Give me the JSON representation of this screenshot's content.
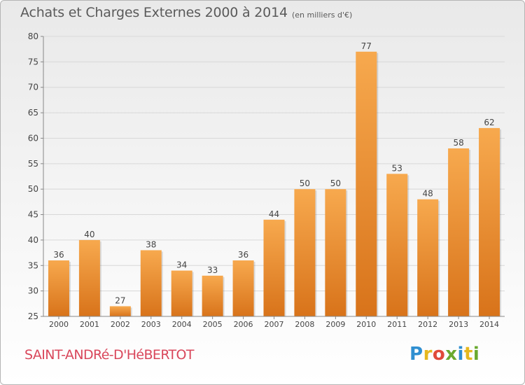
{
  "header": {
    "title": "Achats et Charges Externes 2000 à 2014",
    "subtitle": "(en milliers d'€)"
  },
  "footer": {
    "commune": "SAINT-ANDRé-D'HéBERTOT",
    "logo": [
      "P",
      "r",
      "o",
      "x",
      "i",
      "t",
      "i"
    ]
  },
  "colors": {
    "bar_light": "#f7a94e",
    "bar_dark": "#d8731a",
    "grid": "#d8d8d8",
    "axis_text": "#444444",
    "commune": "#d9475b"
  },
  "chart_data": {
    "type": "bar",
    "title": "Achats et Charges Externes 2000 à 2014",
    "subtitle": "(en milliers d'€)",
    "categories": [
      "2000",
      "2001",
      "2002",
      "2003",
      "2004",
      "2005",
      "2006",
      "2007",
      "2008",
      "2009",
      "2010",
      "2011",
      "2012",
      "2013",
      "2014"
    ],
    "values": [
      36,
      40,
      27,
      38,
      34,
      33,
      36,
      44,
      50,
      50,
      77,
      53,
      48,
      58,
      62
    ],
    "ylim": [
      25,
      80
    ],
    "yticks": [
      25,
      30,
      35,
      40,
      45,
      50,
      55,
      60,
      65,
      70,
      75,
      80
    ],
    "grid": true,
    "xlabel": "",
    "ylabel": ""
  }
}
